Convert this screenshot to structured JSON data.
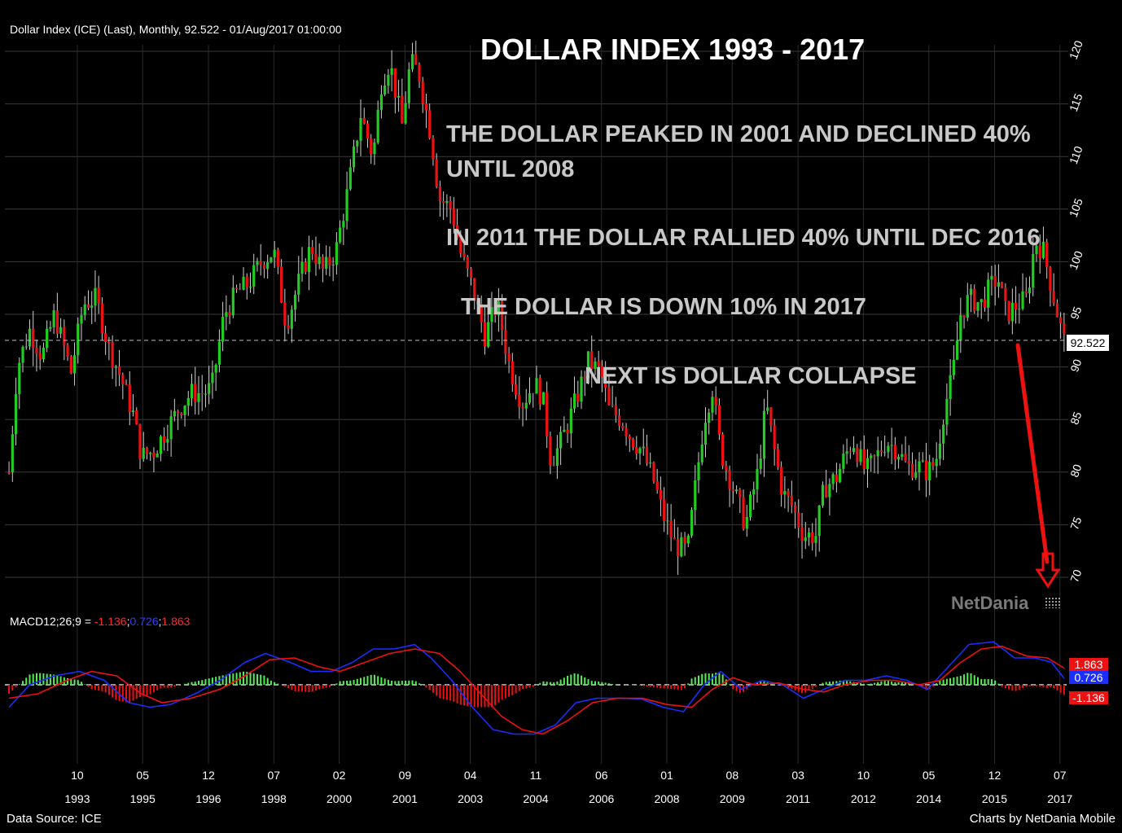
{
  "header": {
    "instrument_line": "Dollar Index (ICE) (Last), Monthly, 92.522 - 01/Aug/2017 01:00:00",
    "macd_prefix": "MACD12;26;9 = ",
    "macd_v1": "-1.136",
    "macd_sep1": ";",
    "macd_v2": "0.726",
    "macd_sep2": ";",
    "macd_v3": "1.863"
  },
  "title": "DOLLAR INDEX 1993 - 2017",
  "annotations": {
    "a1": "THE DOLLAR PEAKED IN 2001 AND DECLINED 40%",
    "a1b": "UNTIL 2008",
    "a2": "IN 2011 THE DOLLAR RALLIED 40% UNTIL DEC 2016",
    "a3": "THE DOLLAR  IS DOWN 10% IN 2017",
    "a4": "NEXT IS DOLLAR COLLAPSE"
  },
  "brand": "NetDania",
  "footer": {
    "source": "Data Source: ICE",
    "credit": "Charts by NetDania Mobile"
  },
  "last_price_label": "92.522",
  "macd_tags": {
    "signal": "1.863",
    "macd": "0.726",
    "hist": "-1.136"
  },
  "colors": {
    "up": "#22cc22",
    "down": "#ee1111",
    "macd_line": "#1a2eff",
    "signal_line": "#ee1111",
    "background": "#000000",
    "grid": "#3a3a3a"
  },
  "chart_data": {
    "type": "candlestick",
    "ylim": [
      70,
      120
    ],
    "yticks": [
      70,
      75,
      80,
      85,
      90,
      95,
      100,
      105,
      110,
      115,
      120
    ],
    "xticks": [
      {
        "month": "10",
        "year": "1993",
        "t": 1993.75
      },
      {
        "month": "05",
        "year": "1995",
        "t": 1995.33
      },
      {
        "month": "12",
        "year": "1996",
        "t": 1996.92
      },
      {
        "month": "07",
        "year": "1998",
        "t": 1998.5
      },
      {
        "month": "02",
        "year": "2000",
        "t": 2000.08
      },
      {
        "month": "09",
        "year": "2001",
        "t": 2001.67
      },
      {
        "month": "04",
        "year": "2003",
        "t": 2003.25
      },
      {
        "month": "11",
        "year": "2004",
        "t": 2004.83
      },
      {
        "month": "06",
        "year": "2006",
        "t": 2006.42
      },
      {
        "month": "01",
        "year": "2008",
        "t": 2008.0
      },
      {
        "month": "08",
        "year": "2009",
        "t": 2009.58
      },
      {
        "month": "03",
        "year": "2011",
        "t": 2011.17
      },
      {
        "month": "10",
        "year": "2012",
        "t": 2012.75
      },
      {
        "month": "05",
        "year": "2014",
        "t": 2014.33
      },
      {
        "month": "12",
        "year": "2015",
        "t": 2015.92
      },
      {
        "month": "07",
        "year": "2017",
        "t": 2017.5
      }
    ],
    "last_value": 92.522,
    "price_path": [
      [
        1992.1,
        80.0
      ],
      [
        1992.3,
        90.0
      ],
      [
        1992.6,
        93.5
      ],
      [
        1992.9,
        91.0
      ],
      [
        1993.2,
        95.0
      ],
      [
        1993.6,
        89.5
      ],
      [
        1993.9,
        96.0
      ],
      [
        1994.2,
        96.5
      ],
      [
        1994.5,
        92.0
      ],
      [
        1994.8,
        89.0
      ],
      [
        1995.1,
        85.5
      ],
      [
        1995.3,
        81.5
      ],
      [
        1995.6,
        82.0
      ],
      [
        1995.9,
        84.0
      ],
      [
        1996.2,
        86.0
      ],
      [
        1996.5,
        87.5
      ],
      [
        1996.8,
        87.5
      ],
      [
        1997.0,
        88.0
      ],
      [
        1997.3,
        95.0
      ],
      [
        1997.6,
        97.0
      ],
      [
        1997.9,
        98.0
      ],
      [
        1998.2,
        100.0
      ],
      [
        1998.5,
        101.0
      ],
      [
        1998.8,
        94.0
      ],
      [
        1999.1,
        98.0
      ],
      [
        1999.4,
        101.5
      ],
      [
        1999.7,
        99.0
      ],
      [
        2000.0,
        101.0
      ],
      [
        2000.3,
        107.0
      ],
      [
        2000.6,
        114.0
      ],
      [
        2000.9,
        110.0
      ],
      [
        2001.1,
        117.0
      ],
      [
        2001.3,
        119.0
      ],
      [
        2001.6,
        113.0
      ],
      [
        2001.8,
        119.0
      ],
      [
        2002.0,
        118.0
      ],
      [
        2002.3,
        112.0
      ],
      [
        2002.5,
        106.0
      ],
      [
        2002.8,
        105.0
      ],
      [
        2003.0,
        101.0
      ],
      [
        2003.3,
        97.5
      ],
      [
        2003.6,
        93.0
      ],
      [
        2003.9,
        96.0
      ],
      [
        2004.2,
        90.0
      ],
      [
        2004.5,
        86.5
      ],
      [
        2004.8,
        88.5
      ],
      [
        2005.0,
        87.0
      ],
      [
        2005.2,
        81.0
      ],
      [
        2005.4,
        82.5
      ],
      [
        2005.6,
        84.5
      ],
      [
        2005.9,
        88.0
      ],
      [
        2006.1,
        90.5
      ],
      [
        2006.4,
        89.5
      ],
      [
        2006.6,
        86.0
      ],
      [
        2006.9,
        85.0
      ],
      [
        2007.1,
        83.5
      ],
      [
        2007.4,
        82.0
      ],
      [
        2007.7,
        79.0
      ],
      [
        2007.9,
        76.0
      ],
      [
        2008.2,
        73.0
      ],
      [
        2008.5,
        72.5
      ],
      [
        2008.7,
        79.0
      ],
      [
        2008.9,
        85.0
      ],
      [
        2009.1,
        88.0
      ],
      [
        2009.3,
        82.0
      ],
      [
        2009.6,
        78.5
      ],
      [
        2009.9,
        75.0
      ],
      [
        2010.2,
        80.0
      ],
      [
        2010.4,
        86.5
      ],
      [
        2010.6,
        82.0
      ],
      [
        2010.8,
        78.0
      ],
      [
        2011.0,
        77.0
      ],
      [
        2011.3,
        74.0
      ],
      [
        2011.6,
        74.0
      ],
      [
        2011.8,
        78.5
      ],
      [
        2012.1,
        79.5
      ],
      [
        2012.3,
        81.5
      ],
      [
        2012.5,
        83.0
      ],
      [
        2012.8,
        80.0
      ],
      [
        2013.0,
        81.0
      ],
      [
        2013.3,
        83.0
      ],
      [
        2013.6,
        82.0
      ],
      [
        2013.8,
        80.5
      ],
      [
        2014.1,
        80.5
      ],
      [
        2014.3,
        80.0
      ],
      [
        2014.5,
        81.0
      ],
      [
        2014.7,
        86.0
      ],
      [
        2014.9,
        89.0
      ],
      [
        2015.1,
        95.0
      ],
      [
        2015.3,
        96.5
      ],
      [
        2015.6,
        96.0
      ],
      [
        2015.8,
        97.5
      ],
      [
        2016.0,
        98.5
      ],
      [
        2016.2,
        95.0
      ],
      [
        2016.5,
        96.0
      ],
      [
        2016.7,
        96.5
      ],
      [
        2016.9,
        102.0
      ],
      [
        2017.1,
        101.0
      ],
      [
        2017.3,
        97.5
      ],
      [
        2017.5,
        94.0
      ],
      [
        2017.6,
        92.5
      ]
    ],
    "macd_ylim": [
      -8,
      6
    ],
    "macd_path": [
      [
        1992.1,
        -2.5
      ],
      [
        1992.6,
        0.0
      ],
      [
        1993.2,
        1.0
      ],
      [
        1993.8,
        1.5
      ],
      [
        1994.4,
        0.5
      ],
      [
        1995.0,
        -2.0
      ],
      [
        1995.5,
        -2.5
      ],
      [
        1996.0,
        -2.2
      ],
      [
        1996.6,
        -1.0
      ],
      [
        1997.2,
        0.5
      ],
      [
        1997.8,
        2.5
      ],
      [
        1998.3,
        3.5
      ],
      [
        1998.9,
        2.5
      ],
      [
        1999.4,
        1.5
      ],
      [
        1999.9,
        1.5
      ],
      [
        2000.4,
        2.5
      ],
      [
        2000.9,
        4.0
      ],
      [
        2001.4,
        4.0
      ],
      [
        2001.9,
        4.5
      ],
      [
        2002.3,
        3.0
      ],
      [
        2002.8,
        0.5
      ],
      [
        2003.3,
        -2.5
      ],
      [
        2003.8,
        -5.0
      ],
      [
        2004.3,
        -5.5
      ],
      [
        2004.8,
        -5.5
      ],
      [
        2005.3,
        -4.5
      ],
      [
        2005.8,
        -2.0
      ],
      [
        2006.3,
        -1.5
      ],
      [
        2006.9,
        -1.5
      ],
      [
        2007.4,
        -1.6
      ],
      [
        2007.9,
        -2.5
      ],
      [
        2008.4,
        -3.0
      ],
      [
        2008.9,
        0.0
      ],
      [
        2009.3,
        1.5
      ],
      [
        2009.8,
        -0.5
      ],
      [
        2010.3,
        0.5
      ],
      [
        2010.8,
        0.0
      ],
      [
        2011.3,
        -1.5
      ],
      [
        2011.8,
        -0.5
      ],
      [
        2012.3,
        0.5
      ],
      [
        2012.8,
        0.5
      ],
      [
        2013.3,
        1.0
      ],
      [
        2013.8,
        0.5
      ],
      [
        2014.3,
        -0.5
      ],
      [
        2014.8,
        2.0
      ],
      [
        2015.3,
        4.5
      ],
      [
        2015.9,
        4.8
      ],
      [
        2016.4,
        3.0
      ],
      [
        2016.9,
        3.0
      ],
      [
        2017.3,
        2.5
      ],
      [
        2017.6,
        0.726
      ]
    ],
    "signal_path": [
      [
        1992.1,
        -1.5
      ],
      [
        1992.8,
        -1.0
      ],
      [
        1993.5,
        0.5
      ],
      [
        1994.1,
        1.5
      ],
      [
        1994.7,
        1.0
      ],
      [
        1995.3,
        -1.0
      ],
      [
        1995.8,
        -2.0
      ],
      [
        1996.5,
        -1.5
      ],
      [
        1997.2,
        -0.5
      ],
      [
        1997.8,
        1.0
      ],
      [
        1998.4,
        2.8
      ],
      [
        1999.0,
        3.0
      ],
      [
        1999.6,
        2.0
      ],
      [
        2000.1,
        1.5
      ],
      [
        2000.7,
        2.5
      ],
      [
        2001.3,
        3.5
      ],
      [
        2001.9,
        4.0
      ],
      [
        2002.5,
        3.5
      ],
      [
        2003.0,
        1.5
      ],
      [
        2003.5,
        -1.0
      ],
      [
        2004.0,
        -3.5
      ],
      [
        2004.5,
        -5.0
      ],
      [
        2005.0,
        -5.5
      ],
      [
        2005.6,
        -4.0
      ],
      [
        2006.2,
        -2.0
      ],
      [
        2006.8,
        -1.5
      ],
      [
        2007.4,
        -1.5
      ],
      [
        2008.0,
        -2.2
      ],
      [
        2008.6,
        -2.5
      ],
      [
        2009.1,
        -0.5
      ],
      [
        2009.6,
        0.8
      ],
      [
        2010.1,
        0.0
      ],
      [
        2010.7,
        0.2
      ],
      [
        2011.3,
        -0.5
      ],
      [
        2011.8,
        -0.8
      ],
      [
        2012.3,
        0.0
      ],
      [
        2012.9,
        0.5
      ],
      [
        2013.5,
        0.5
      ],
      [
        2014.1,
        0.0
      ],
      [
        2014.6,
        0.5
      ],
      [
        2015.1,
        2.5
      ],
      [
        2015.6,
        4.0
      ],
      [
        2016.1,
        4.3
      ],
      [
        2016.7,
        3.2
      ],
      [
        2017.2,
        3.0
      ],
      [
        2017.6,
        1.863
      ]
    ]
  }
}
